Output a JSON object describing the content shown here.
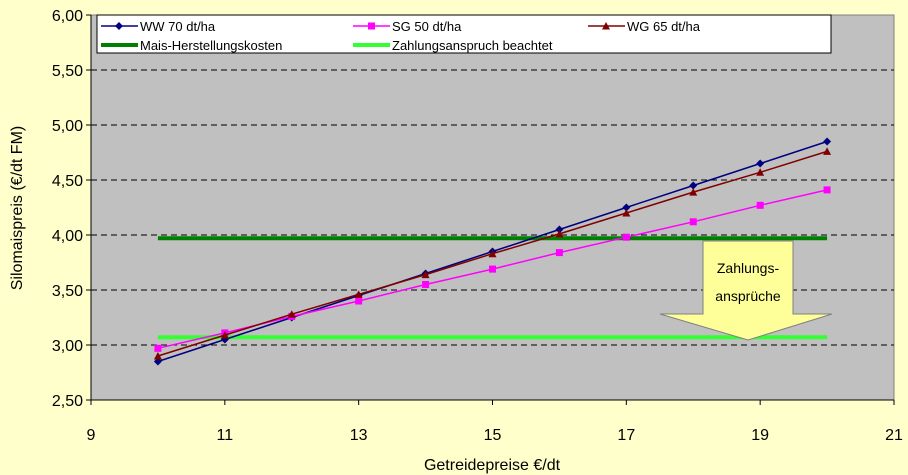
{
  "chart_data": {
    "type": "line",
    "xlabel": "Getreidepreise €/dt",
    "ylabel": "Silomaispreis (€/dt FM)",
    "xlim": [
      9,
      21
    ],
    "ylim": [
      2.5,
      6.0
    ],
    "xticks": [
      9,
      11,
      13,
      15,
      17,
      19,
      21
    ],
    "yticks": [
      2.5,
      3.0,
      3.5,
      4.0,
      4.5,
      5.0,
      5.5,
      6.0
    ],
    "xtick_labels": [
      "9",
      "11",
      "13",
      "15",
      "17",
      "19",
      "21"
    ],
    "ytick_labels": [
      "2,50",
      "3,00",
      "3,50",
      "4,00",
      "4,50",
      "5,00",
      "5,50",
      "6,00"
    ],
    "grid": "horizontal dashed",
    "legend_position": "top",
    "x": [
      10,
      11,
      12,
      13,
      14,
      15,
      16,
      17,
      18,
      19,
      20
    ],
    "series": [
      {
        "name": "WW 70 dt/ha",
        "color": "#000080",
        "marker": "diamond",
        "values": [
          2.85,
          3.05,
          3.25,
          3.45,
          3.65,
          3.85,
          4.05,
          4.25,
          4.45,
          4.65,
          4.85
        ]
      },
      {
        "name": "SG 50 dt/ha",
        "color": "#ff00ff",
        "marker": "square",
        "values": [
          2.97,
          3.11,
          3.26,
          3.4,
          3.55,
          3.69,
          3.84,
          3.98,
          4.12,
          4.27,
          4.41
        ]
      },
      {
        "name": "WG 65 dt/ha",
        "color": "#800000",
        "marker": "triangle",
        "values": [
          2.9,
          3.09,
          3.28,
          3.46,
          3.64,
          3.83,
          4.01,
          4.2,
          4.39,
          4.57,
          4.76
        ]
      }
    ],
    "reference_lines": [
      {
        "name": "Mais-Herstellungskosten",
        "color": "#008000",
        "x": [
          10,
          20
        ],
        "y": 3.97
      },
      {
        "name": "Zahlungsanspruch beachtet",
        "color": "#33ff33",
        "x": [
          10,
          20
        ],
        "y": 3.07
      }
    ],
    "annotation": {
      "lines": [
        "Zahlungs-",
        "ansprüche"
      ],
      "fill": "#ffff99"
    },
    "colors": {
      "page_background": "#ffffcc",
      "plot_background": "#c0c0c0"
    }
  }
}
